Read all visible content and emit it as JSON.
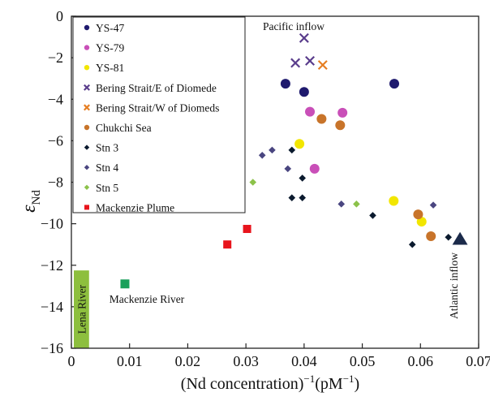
{
  "chart_data": {
    "type": "scatter",
    "xlabel": "(Nd concentration)",
    "xlabel_sup1": "−1",
    "xlabel_mid": "(pM",
    "xlabel_sup2": "−1",
    "xlabel_end": ")",
    "ylabel": "ε",
    "ylabel_sub": "Nd",
    "xlim": [
      0,
      0.07
    ],
    "ylim": [
      -16,
      0
    ],
    "xticks": [
      "0",
      "0.01",
      "0.02",
      "0.03",
      "0.04",
      "0.05",
      "0.06",
      "0.07"
    ],
    "yticks": [
      "0",
      "−2",
      "−4",
      "−6",
      "−8",
      "−10",
      "−12",
      "−14",
      "−16"
    ],
    "legend_position": "top-left",
    "series": [
      {
        "name": "YS-47",
        "marker": "circle",
        "color": "#1f1a6e",
        "x": [
          0.0368,
          0.04,
          0.0555
        ],
        "y": [
          -3.25,
          -3.65,
          -3.25
        ]
      },
      {
        "name": "YS-79",
        "marker": "circle",
        "color": "#c94fb8",
        "x": [
          0.041,
          0.0466,
          0.0418
        ],
        "y": [
          -4.6,
          -4.65,
          -7.35
        ]
      },
      {
        "name": "YS-81",
        "marker": "circle",
        "color": "#f2e600",
        "x": [
          0.0392,
          0.0554,
          0.0602
        ],
        "y": [
          -6.15,
          -8.9,
          -9.9
        ]
      },
      {
        "name": "Bering Strait/E of Diomede",
        "marker": "x",
        "color": "#5a3d8c",
        "x": [
          0.04,
          0.0385,
          0.041
        ],
        "y": [
          -1.05,
          -2.25,
          -2.15
        ]
      },
      {
        "name": "Bering Strait/W of Diomeds",
        "marker": "x",
        "color": "#e67e22",
        "x": [
          0.0432
        ],
        "y": [
          -2.35
        ]
      },
      {
        "name": "Chukchi Sea",
        "marker": "circle",
        "color": "#c8742a",
        "x": [
          0.043,
          0.0462,
          0.0596,
          0.0618
        ],
        "y": [
          -4.95,
          -5.25,
          -9.55,
          -10.6
        ]
      },
      {
        "name": "Stn 3",
        "marker": "diamond",
        "color": "#0b1a2e",
        "x": [
          0.0379,
          0.0379,
          0.0397,
          0.0397,
          0.0518,
          0.0586,
          0.0648
        ],
        "y": [
          -6.45,
          -8.75,
          -7.8,
          -8.75,
          -9.6,
          -11.0,
          -10.65
        ]
      },
      {
        "name": "Stn 4",
        "marker": "diamond",
        "color": "#4a4680",
        "x": [
          0.0328,
          0.0345,
          0.0372,
          0.0464,
          0.0622
        ],
        "y": [
          -6.7,
          -6.45,
          -7.35,
          -9.05,
          -9.1
        ]
      },
      {
        "name": "Stn 5",
        "marker": "diamond",
        "color": "#8cc24a",
        "x": [
          0.0312,
          0.049
        ],
        "y": [
          -8.0,
          -9.05
        ]
      },
      {
        "name": "Mackenzie Plume",
        "marker": "square",
        "color": "#e8141c",
        "x": [
          0.0268,
          0.0302
        ],
        "y": [
          -11.0,
          -10.25
        ]
      }
    ],
    "extra_points": [
      {
        "marker": "square",
        "color": "#1aa05a",
        "x": 0.0092,
        "y": -12.9
      },
      {
        "marker": "triangle",
        "color": "#1b2a4a",
        "x": 0.0668,
        "y": -10.75
      }
    ],
    "lena_band": {
      "label": "Lena River",
      "color": "#8dbf3e",
      "x": [
        0.0,
        0.0022
      ],
      "y": [
        -16,
        -12.25
      ]
    },
    "annotations": {
      "pacific": "Pacific inflow",
      "mackenzie_river": "Mackenzie River",
      "atlantic": "Atlantic inflow"
    }
  }
}
